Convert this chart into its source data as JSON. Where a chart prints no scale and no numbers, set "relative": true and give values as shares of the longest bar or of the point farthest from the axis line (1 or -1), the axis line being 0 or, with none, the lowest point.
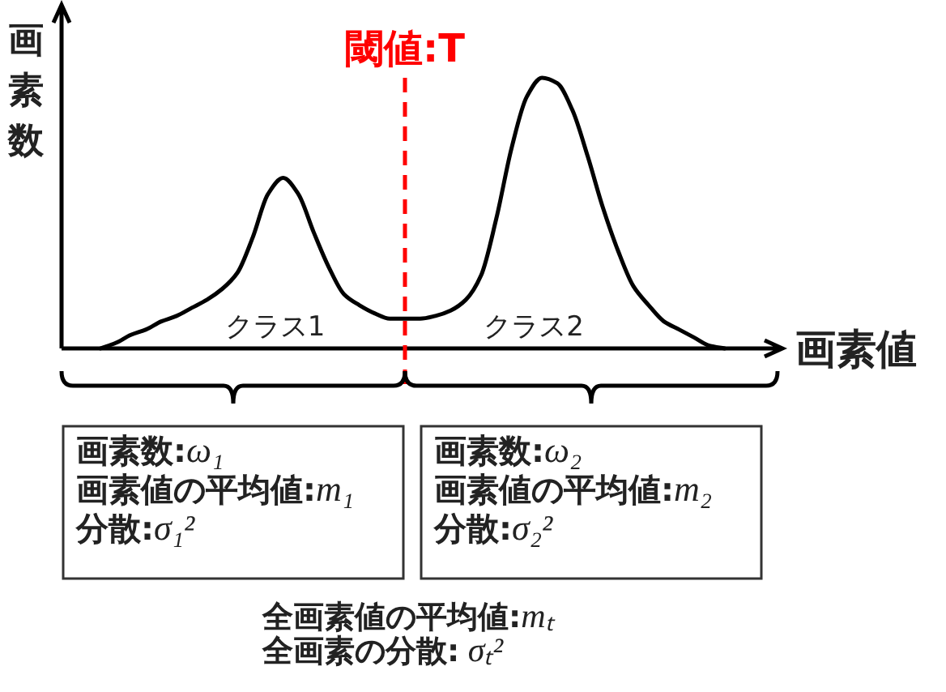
{
  "chart_data": {
    "type": "line",
    "relative": true,
    "xlabel": "画素値",
    "ylabel": "画素数",
    "categories": [
      null,
      null,
      null,
      null,
      null,
      null,
      null,
      null,
      null,
      null,
      null,
      null,
      null,
      null,
      null,
      null,
      null,
      null,
      null,
      null,
      null,
      null,
      null,
      null,
      null,
      null,
      null,
      null,
      null,
      null,
      null,
      null,
      null,
      null,
      null,
      null,
      null,
      null,
      null,
      null,
      null,
      null
    ],
    "values": [
      0,
      0.02,
      0.05,
      0.07,
      0.1,
      0.12,
      0.15,
      0.18,
      0.22,
      0.28,
      0.41,
      0.57,
      0.63,
      0.57,
      0.43,
      0.3,
      0.2,
      0.16,
      0.13,
      0.11,
      0.11,
      0.11,
      0.12,
      0.14,
      0.18,
      0.27,
      0.48,
      0.74,
      0.93,
      1,
      0.98,
      0.88,
      0.71,
      0.52,
      0.36,
      0.23,
      0.16,
      0.1,
      0.07,
      0.04,
      0.01,
      0
    ],
    "color": "#000000",
    "annotations": [
      "閾値:T",
      "クラス1",
      "クラス2",
      "画素数:ω₁\n画素値の平均値:m₁\n分散:σ₁²",
      "画素数:ω₂\n画素値の平均値:m₂\n分散:σ₂²",
      "全画素値の平均値:mₜ\n全画素の分散: σₜ²"
    ]
  }
}
